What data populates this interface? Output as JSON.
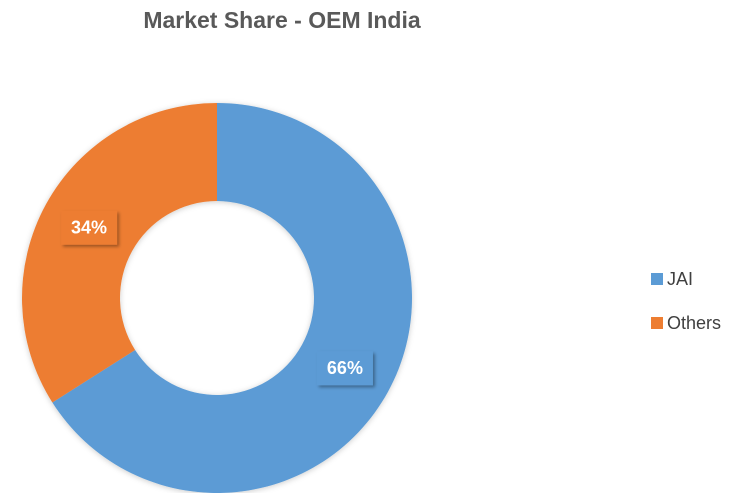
{
  "chart_data": {
    "type": "donut",
    "title": "Market Share - OEM India",
    "categories": [
      "JAI",
      "Others"
    ],
    "values": [
      66,
      34
    ],
    "value_labels": [
      "66%",
      "34%"
    ],
    "colors": [
      "#5b9bd5",
      "#ed7d31"
    ],
    "legend": "right"
  }
}
